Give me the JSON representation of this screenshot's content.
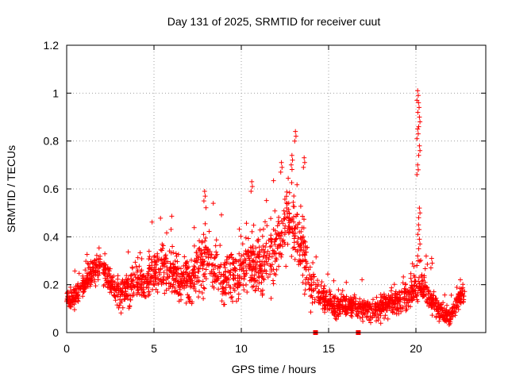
{
  "chart_data": {
    "type": "scatter",
    "title": "Day 131 of 2025, SRMTID for receiver cuut",
    "xlabel": "GPS time / hours",
    "ylabel": "SRMTID / TECUs",
    "xlim": [
      0,
      24
    ],
    "ylim": [
      0,
      1.2
    ],
    "x_ticks": [
      0,
      5,
      10,
      15,
      20
    ],
    "x_tick_labels": [
      "0",
      "5",
      "10",
      "15",
      "20"
    ],
    "y_ticks": [
      0,
      0.2,
      0.4,
      0.6,
      0.8,
      1.0,
      1.2
    ],
    "y_tick_labels": [
      "0",
      "0.2",
      "0.4",
      "0.6",
      "0.8",
      "1",
      "1.2"
    ],
    "grid": true,
    "marker": "plus",
    "color": "#ff0000",
    "gap_marker_x": [
      14.25,
      16.7
    ],
    "profile": [
      [
        0.0,
        0.14
      ],
      [
        0.5,
        0.15
      ],
      [
        1.0,
        0.2
      ],
      [
        1.5,
        0.26
      ],
      [
        2.0,
        0.27
      ],
      [
        2.5,
        0.21
      ],
      [
        3.0,
        0.16
      ],
      [
        3.5,
        0.19
      ],
      [
        4.0,
        0.22
      ],
      [
        4.5,
        0.2
      ],
      [
        5.0,
        0.25
      ],
      [
        5.5,
        0.27
      ],
      [
        6.0,
        0.25
      ],
      [
        6.5,
        0.23
      ],
      [
        7.0,
        0.22
      ],
      [
        7.5,
        0.27
      ],
      [
        8.0,
        0.3
      ],
      [
        8.5,
        0.27
      ],
      [
        9.0,
        0.23
      ],
      [
        9.5,
        0.24
      ],
      [
        10.0,
        0.26
      ],
      [
        10.5,
        0.32
      ],
      [
        11.0,
        0.28
      ],
      [
        11.5,
        0.3
      ],
      [
        12.0,
        0.36
      ],
      [
        12.5,
        0.43
      ],
      [
        13.0,
        0.44
      ],
      [
        13.5,
        0.35
      ],
      [
        14.0,
        0.2
      ],
      [
        14.5,
        0.16
      ],
      [
        15.0,
        0.12
      ],
      [
        15.5,
        0.11
      ],
      [
        16.0,
        0.12
      ],
      [
        16.5,
        0.11
      ],
      [
        17.0,
        0.09
      ],
      [
        17.5,
        0.1
      ],
      [
        18.0,
        0.1
      ],
      [
        18.5,
        0.12
      ],
      [
        19.0,
        0.13
      ],
      [
        19.5,
        0.15
      ],
      [
        20.0,
        0.2
      ],
      [
        20.5,
        0.18
      ],
      [
        21.0,
        0.12
      ],
      [
        21.5,
        0.08
      ],
      [
        22.0,
        0.06
      ],
      [
        22.5,
        0.15
      ],
      [
        22.8,
        0.16
      ]
    ],
    "spread": [
      [
        0.0,
        0.03
      ],
      [
        2.0,
        0.06
      ],
      [
        5.0,
        0.08
      ],
      [
        8.0,
        0.1
      ],
      [
        10.0,
        0.1
      ],
      [
        12.0,
        0.14
      ],
      [
        13.5,
        0.12
      ],
      [
        14.5,
        0.05
      ],
      [
        17.0,
        0.04
      ],
      [
        20.0,
        0.06
      ],
      [
        22.0,
        0.03
      ],
      [
        22.8,
        0.04
      ]
    ],
    "peaks": [
      {
        "x": 7.9,
        "y": 0.59
      },
      {
        "x": 10.6,
        "y": 0.63
      },
      {
        "x": 12.3,
        "y": 0.71
      },
      {
        "x": 12.9,
        "y": 0.74
      },
      {
        "x": 13.1,
        "y": 0.84
      },
      {
        "x": 13.6,
        "y": 0.73
      },
      {
        "x": 20.1,
        "y": 1.01
      },
      {
        "x": 20.15,
        "y": 0.96
      },
      {
        "x": 20.2,
        "y": 0.9
      },
      {
        "x": 20.1,
        "y": 0.85
      },
      {
        "x": 20.2,
        "y": 0.78
      },
      {
        "x": 20.1,
        "y": 0.7
      },
      {
        "x": 20.2,
        "y": 0.52
      },
      {
        "x": 20.15,
        "y": 0.45
      },
      {
        "x": 20.2,
        "y": 0.39
      },
      {
        "x": 20.1,
        "y": 0.32
      },
      {
        "x": 20.9,
        "y": 0.31
      }
    ],
    "sample_count": 2200,
    "random_seed": 131
  }
}
